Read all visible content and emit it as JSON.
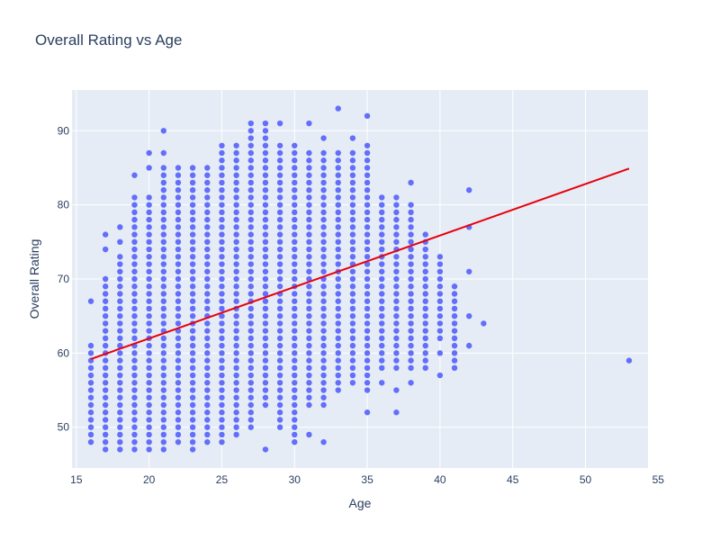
{
  "chart_data": {
    "type": "scatter",
    "title": "Overall Rating vs Age",
    "xlabel": "Age",
    "ylabel": "Overall Rating",
    "xlim": [
      14.7,
      54.3
    ],
    "ylim": [
      44.5,
      95.5
    ],
    "x_ticks": [
      15,
      20,
      25,
      30,
      35,
      40,
      45,
      50,
      55
    ],
    "y_ticks": [
      50,
      60,
      70,
      80,
      90
    ],
    "grid": true,
    "legend": "none",
    "colors": {
      "points": "#636efa",
      "trendline": "#e8000b",
      "plot_bg": "#e5ecf6",
      "grid": "#ffffff"
    },
    "series": [
      {
        "type": "scatter",
        "columns": [
          {
            "x": 16,
            "min": 48,
            "max": 61,
            "extra": [
              67
            ]
          },
          {
            "x": 17,
            "min": 47,
            "max": 70,
            "extra": [
              74,
              76
            ]
          },
          {
            "x": 18,
            "min": 47,
            "max": 73,
            "extra": [
              75,
              77
            ]
          },
          {
            "x": 19,
            "min": 47,
            "max": 81,
            "extra": [
              84
            ]
          },
          {
            "x": 20,
            "min": 47,
            "max": 81,
            "extra": [
              85,
              87
            ]
          },
          {
            "x": 21,
            "min": 47,
            "max": 85,
            "extra": [
              87,
              90
            ]
          },
          {
            "x": 22,
            "min": 48,
            "max": 85,
            "extra": []
          },
          {
            "x": 23,
            "min": 47,
            "max": 85,
            "extra": []
          },
          {
            "x": 24,
            "min": 48,
            "max": 85,
            "extra": []
          },
          {
            "x": 25,
            "min": 48,
            "max": 88,
            "extra": []
          },
          {
            "x": 26,
            "min": 49,
            "max": 88,
            "extra": []
          },
          {
            "x": 27,
            "min": 50,
            "max": 91,
            "extra": []
          },
          {
            "x": 28,
            "min": 53,
            "max": 91,
            "extra": [
              47
            ]
          },
          {
            "x": 29,
            "min": 50,
            "max": 88,
            "extra": [
              91
            ]
          },
          {
            "x": 30,
            "min": 48,
            "max": 88,
            "extra": []
          },
          {
            "x": 31,
            "min": 53,
            "max": 87,
            "extra": [
              49,
              91
            ]
          },
          {
            "x": 32,
            "min": 53,
            "max": 87,
            "extra": [
              48,
              89
            ]
          },
          {
            "x": 33,
            "min": 55,
            "max": 87,
            "extra": [
              93
            ]
          },
          {
            "x": 34,
            "min": 56,
            "max": 87,
            "extra": [
              89
            ]
          },
          {
            "x": 35,
            "min": 55,
            "max": 88,
            "extra": [
              52,
              92
            ]
          },
          {
            "x": 36,
            "min": 58,
            "max": 81,
            "extra": [
              56
            ]
          },
          {
            "x": 37,
            "min": 58,
            "max": 81,
            "extra": [
              52,
              55
            ]
          },
          {
            "x": 38,
            "min": 58,
            "max": 80,
            "extra": [
              56,
              83
            ]
          },
          {
            "x": 39,
            "min": 61,
            "max": 76,
            "extra": [
              58,
              59,
              60
            ]
          },
          {
            "x": 40,
            "min": 62,
            "max": 73,
            "extra": [
              57,
              60
            ]
          },
          {
            "x": 41,
            "min": 60,
            "max": 69,
            "extra": [
              58,
              59
            ]
          },
          {
            "x": 42,
            "min": 65,
            "max": 65,
            "extra": [
              61,
              71,
              77,
              82
            ]
          },
          {
            "x": 43,
            "min": 64,
            "max": 64,
            "extra": []
          },
          {
            "x": 53,
            "min": 59,
            "max": 59,
            "extra": []
          }
        ]
      },
      {
        "type": "line",
        "x": [
          16,
          53
        ],
        "y": [
          59.2,
          84.9
        ]
      }
    ]
  }
}
